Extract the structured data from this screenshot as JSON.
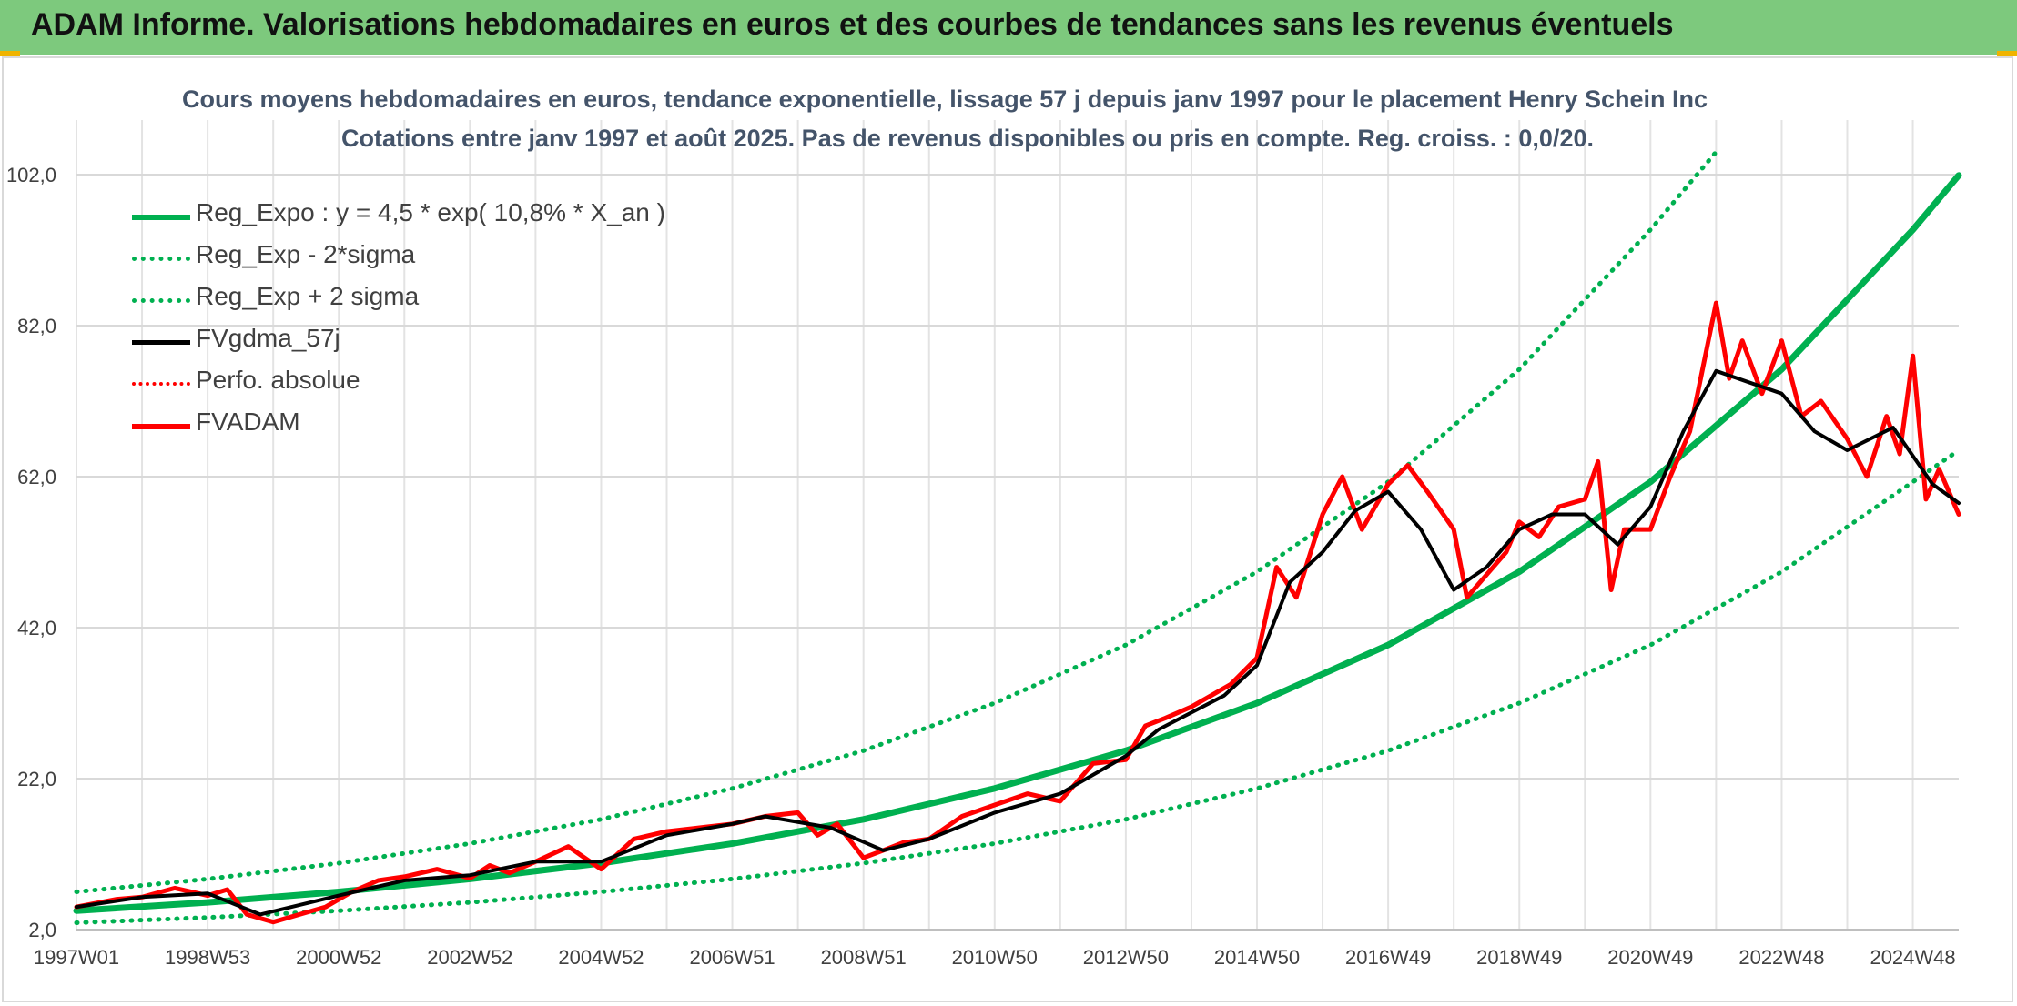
{
  "header": {
    "title": "ADAM Informe. Valorisations hebdomadaires en euros et des courbes de tendances sans les revenus éventuels"
  },
  "chart_data": {
    "type": "line",
    "title": "Cours moyens hebdomadaires en euros, tendance exponentielle, lissage 57 j depuis janv 1997 pour le placement Henry Schein Inc",
    "subtitle": "Cotations entre janv 1997 et août 2025. Pas de revenus disponibles ou pris en compte. Reg. croiss. : 0,0/20.",
    "x_ticks": [
      "1997W01",
      "1998W53",
      "2000W52",
      "2002W52",
      "2004W52",
      "2006W51",
      "2008W51",
      "2010W50",
      "2012W50",
      "2014W50",
      "2016W49",
      "2018W49",
      "2020W49",
      "2022W48",
      "2024W48"
    ],
    "x_tick_years": [
      1997,
      1999,
      2001,
      2003,
      2005,
      2007,
      2009,
      2011,
      2013,
      2015,
      2017,
      2019,
      2021,
      2023,
      2025
    ],
    "y_ticks": [
      "2,0",
      "22,0",
      "42,0",
      "62,0",
      "82,0",
      "102,0"
    ],
    "y_tick_values": [
      2,
      22,
      42,
      62,
      82,
      102
    ],
    "xlim": [
      1997.0,
      2025.7
    ],
    "ylim": [
      2,
      102
    ],
    "grid": true,
    "legend_position": "top-left",
    "series": [
      {
        "name": "Reg_Expo : y = 4,5 * exp( 10,8% *  X_an )",
        "color": "#00b050",
        "style": "solid",
        "x": [
          1997,
          1999,
          2001,
          2003,
          2005,
          2007,
          2009,
          2011,
          2013,
          2015,
          2017,
          2019,
          2021,
          2023,
          2025,
          2025.7
        ],
        "y": [
          4.5,
          5.6,
          7.0,
          8.7,
          10.8,
          13.4,
          16.6,
          20.7,
          25.7,
          32.0,
          39.7,
          49.4,
          61.3,
          76.2,
          94.7,
          101.9
        ]
      },
      {
        "name": "Reg_Exp - 2*sigma",
        "color": "#00b050",
        "style": "dotted",
        "x": [
          1997,
          1999,
          2001,
          2003,
          2005,
          2007,
          2009,
          2011,
          2013,
          2015,
          2017,
          2019,
          2021,
          2023,
          2025,
          2025.7
        ],
        "y": [
          2.9,
          3.6,
          4.5,
          5.6,
          7.0,
          8.7,
          10.8,
          13.4,
          16.6,
          20.7,
          25.7,
          32.0,
          39.7,
          49.4,
          61.3,
          65.5
        ]
      },
      {
        "name": "Reg_Exp + 2 sigma",
        "color": "#00b050",
        "style": "dotted",
        "x": [
          1997,
          1999,
          2001,
          2003,
          2005,
          2007,
          2009,
          2011,
          2013,
          2015,
          2017,
          2019,
          2021,
          2022.0
        ],
        "y": [
          7.0,
          8.7,
          10.8,
          13.4,
          16.6,
          20.7,
          25.7,
          32.0,
          39.7,
          49.4,
          61.3,
          76.2,
          94.7,
          105.0
        ]
      },
      {
        "name": "FVgdma_57j",
        "color": "#000000",
        "style": "solid",
        "x": [
          1997,
          1998,
          1999,
          1999.8,
          2001,
          2002,
          2003,
          2004,
          2005,
          2006,
          2007,
          2007.5,
          2008.5,
          2009.3,
          2010,
          2011,
          2012,
          2013,
          2013.5,
          2014.5,
          2015,
          2015.5,
          2016,
          2016.5,
          2017,
          2017.5,
          2018,
          2018.5,
          2019,
          2019.5,
          2020,
          2020.5,
          2021,
          2021.5,
          2022,
          2022.5,
          2023,
          2023.5,
          2024,
          2024.7,
          2025.3,
          2025.7
        ],
        "y": [
          5.0,
          6.3,
          6.8,
          4.0,
          6.5,
          8.5,
          9.2,
          11.0,
          11.0,
          14.5,
          16.0,
          17.0,
          15.5,
          12.5,
          14.0,
          17.5,
          20.0,
          25.0,
          28.5,
          33.0,
          37.0,
          48.0,
          52.0,
          57.5,
          60.0,
          55.0,
          47.0,
          50.0,
          55.0,
          57.0,
          57.0,
          53.0,
          58.0,
          68.0,
          76.0,
          74.5,
          73.0,
          68.0,
          65.5,
          68.5,
          61.0,
          58.5
        ]
      },
      {
        "name": "Perfo. absolue",
        "color": "#ff0000",
        "style": "dotted",
        "x": [],
        "y": []
      },
      {
        "name": "FVADAM",
        "color": "#ff0000",
        "style": "solid",
        "x": [
          1997,
          1997.3,
          1997.6,
          1998,
          1998.5,
          1999,
          1999.3,
          1999.6,
          2000,
          2000.4,
          2000.8,
          2001.2,
          2001.6,
          2002,
          2002.5,
          2003,
          2003.3,
          2003.6,
          2004,
          2004.5,
          2005,
          2005.5,
          2006,
          2006.5,
          2007,
          2007.5,
          2008,
          2008.3,
          2008.6,
          2009,
          2009.3,
          2009.6,
          2010,
          2010.5,
          2011,
          2011.5,
          2012,
          2012.5,
          2013,
          2013.3,
          2013.6,
          2014,
          2014.3,
          2014.6,
          2015,
          2015.3,
          2015.6,
          2016,
          2016.3,
          2016.6,
          2017,
          2017.3,
          2017.6,
          2018,
          2018.2,
          2018.5,
          2018.8,
          2019,
          2019.3,
          2019.6,
          2020,
          2020.2,
          2020.4,
          2020.6,
          2021,
          2021.3,
          2021.6,
          2022,
          2022.2,
          2022.4,
          2022.7,
          2023,
          2023.3,
          2023.6,
          2024,
          2024.3,
          2024.6,
          2024.8,
          2025,
          2025.2,
          2025.4,
          2025.7
        ],
        "y": [
          5.0,
          5.5,
          6.0,
          6.3,
          7.5,
          6.5,
          7.3,
          4.0,
          3.0,
          4.0,
          5.0,
          7.0,
          8.5,
          9.0,
          10.0,
          8.8,
          10.5,
          9.5,
          11.0,
          13.0,
          10.0,
          14.0,
          15.0,
          15.5,
          16.0,
          17.0,
          17.5,
          14.5,
          16.0,
          11.5,
          12.5,
          13.5,
          14.0,
          17.0,
          18.5,
          20.0,
          19.0,
          24.0,
          24.5,
          29.0,
          30.0,
          31.5,
          33.0,
          34.5,
          38.0,
          50.0,
          46.0,
          57.0,
          62.0,
          55.0,
          61.0,
          63.5,
          60.0,
          55.0,
          46.0,
          49.0,
          52.0,
          56.0,
          54.0,
          58.0,
          59.0,
          64.0,
          47.0,
          55.0,
          55.0,
          62.0,
          68.0,
          85.0,
          75.0,
          80.0,
          73.0,
          80.0,
          70.0,
          72.0,
          67.0,
          62.0,
          70.0,
          65.0,
          78.0,
          59.0,
          63.0,
          57.0
        ]
      }
    ]
  }
}
